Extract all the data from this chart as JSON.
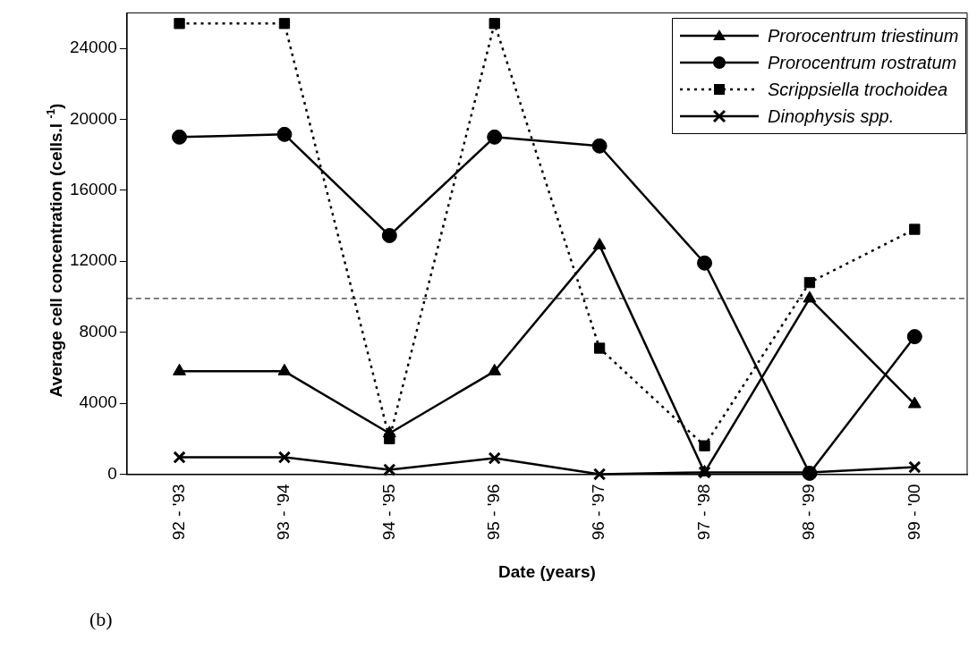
{
  "chart_data": {
    "type": "line",
    "xlabel": "Date (years)",
    "ylabel": "Average cell concentration (cells.l $^{-1}$)",
    "categories": [
      "92 - '93",
      "93 - '94",
      "94 - '95",
      "95 - '96",
      "96 - '97",
      "97 - '98",
      "98 - '99",
      "99 - '00"
    ],
    "series": [
      {
        "name": "Prorocentrum triestinum",
        "color": "#000000",
        "marker": "triangle",
        "line_style": "solid",
        "values": [
          5800,
          5800,
          2300,
          5800,
          12900,
          100,
          9900,
          3950
        ]
      },
      {
        "name": "Prorocentrum rostratum",
        "color": "#000000",
        "marker": "circle",
        "line_style": "solid",
        "values": [
          19000,
          19150,
          13450,
          19000,
          18500,
          11900,
          50,
          7750
        ]
      },
      {
        "name": "Scrippsiella trochoidea",
        "color": "#000000",
        "marker": "square",
        "line_style": "dotted",
        "values": [
          25400,
          25400,
          2000,
          25400,
          7100,
          1600,
          10800,
          13800
        ]
      },
      {
        "name": "Dinophysis spp.",
        "color": "#000000",
        "marker": "cross",
        "line_style": "solid",
        "values": [
          950,
          950,
          250,
          900,
          0,
          100,
          100,
          400
        ]
      }
    ],
    "ylim": [
      0,
      26000
    ],
    "yticks": [
      0,
      4000,
      8000,
      12000,
      16000,
      20000,
      24000
    ],
    "grid": false,
    "legend": "top right",
    "ref_lines": [
      {
        "axis": "y",
        "value": 9900,
        "color": "#000000",
        "line_style": "dashed"
      }
    ],
    "annotations": [
      "(b)"
    ]
  }
}
